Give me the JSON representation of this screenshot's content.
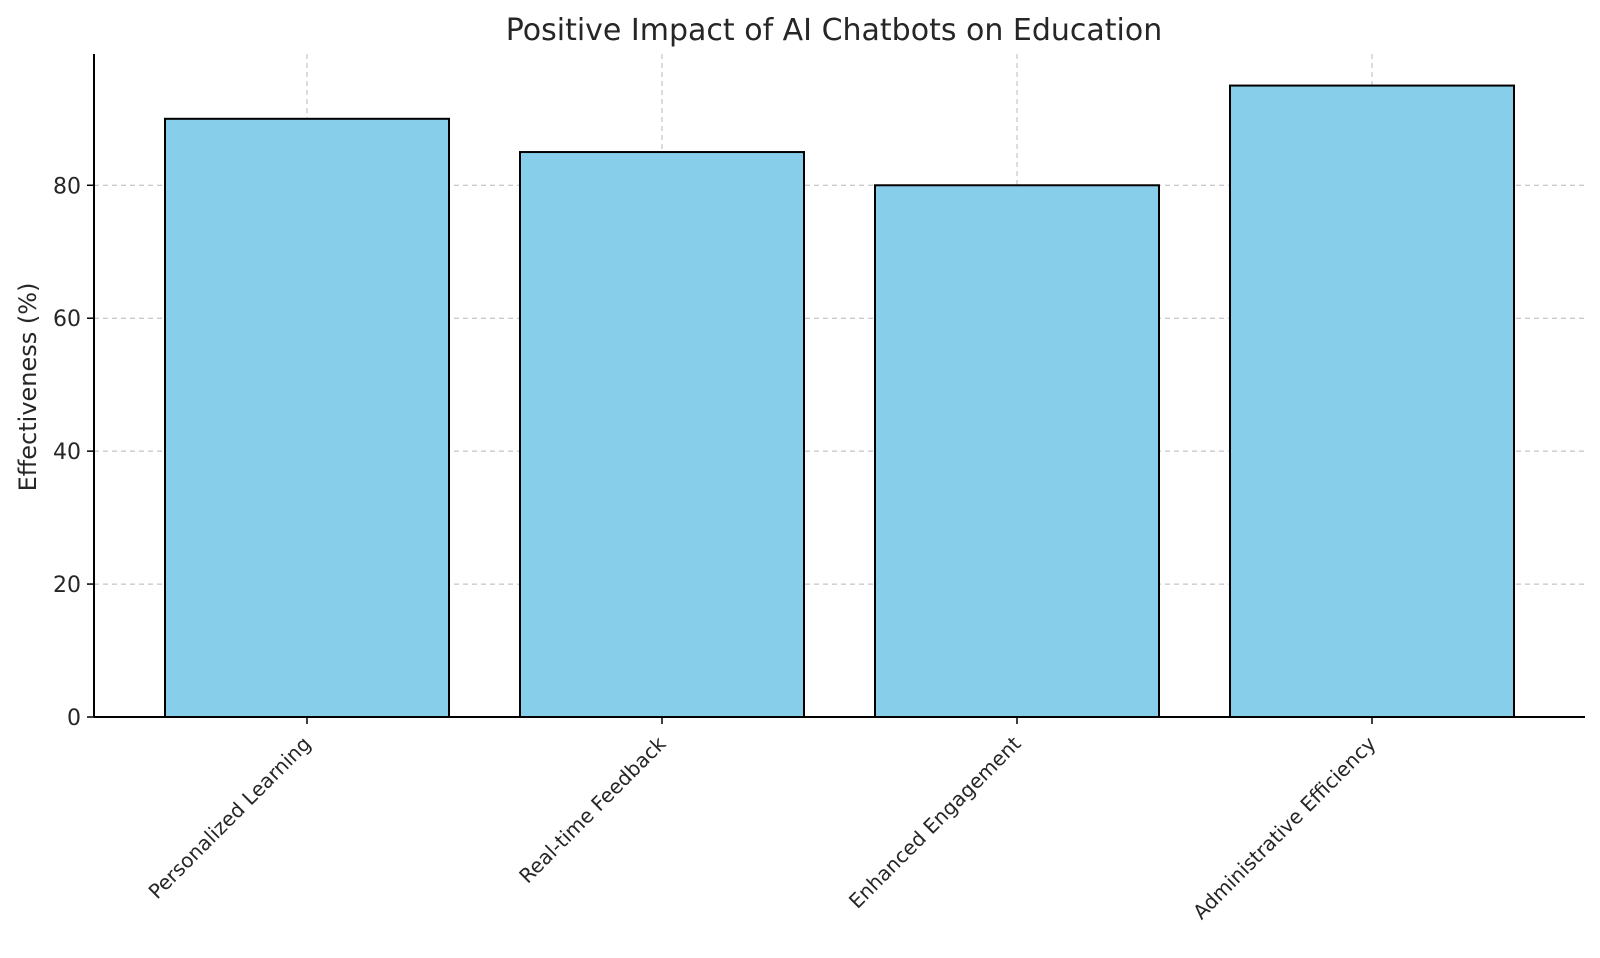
{
  "chart_data": {
    "type": "bar",
    "title": "Positive Impact of AI Chatbots on Education",
    "xlabel": "",
    "ylabel": "Effectiveness (%)",
    "categories": [
      "Personalized Learning",
      "Real-time Feedback",
      "Enhanced Engagement",
      "Administrative Efficiency"
    ],
    "values": [
      90,
      85,
      80,
      95
    ],
    "ylim": [
      0,
      99.75
    ],
    "yticks": [
      0,
      20,
      40,
      60,
      80
    ],
    "grid": true,
    "bar_color": "#87CEEB",
    "bar_edge_color": "#000000",
    "x_label_rotation": 45
  }
}
